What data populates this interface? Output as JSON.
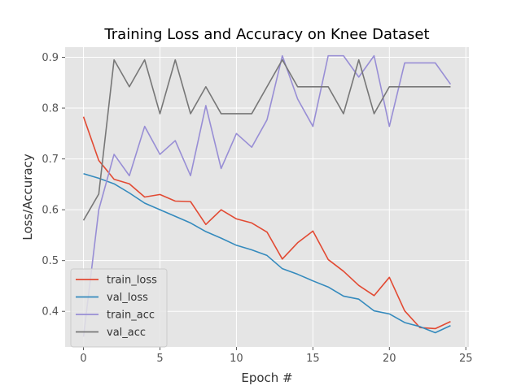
{
  "chart_data": {
    "type": "line",
    "title": "Training Loss and Accuracy on Knee Dataset",
    "xlabel": "Epoch #",
    "ylabel": "Loss/Accuracy",
    "xlim": [
      -1.2,
      25.2
    ],
    "ylim": [
      0.33,
      0.92
    ],
    "xticks": [
      0,
      5,
      10,
      15,
      20,
      25
    ],
    "yticks": [
      0.4,
      0.5,
      0.6,
      0.7,
      0.8,
      0.9
    ],
    "ytick_labels": [
      "0.4",
      "0.5",
      "0.6",
      "0.7",
      "0.8",
      "0.9"
    ],
    "grid": true,
    "background": "#e5e5e5",
    "legend": "bottom-left",
    "x": [
      0,
      1,
      2,
      3,
      4,
      5,
      6,
      7,
      8,
      9,
      10,
      11,
      12,
      13,
      14,
      15,
      16,
      17,
      18,
      19,
      20,
      21,
      22,
      23,
      24
    ],
    "series": [
      {
        "name": "train_loss",
        "color": "#e24a33",
        "values": [
          0.783,
          0.697,
          0.66,
          0.651,
          0.625,
          0.63,
          0.617,
          0.616,
          0.571,
          0.6,
          0.582,
          0.574,
          0.556,
          0.503,
          0.535,
          0.558,
          0.502,
          0.479,
          0.451,
          0.431,
          0.467,
          0.401,
          0.368,
          0.366,
          0.38
        ]
      },
      {
        "name": "val_loss",
        "color": "#348abd",
        "values": [
          0.671,
          0.662,
          0.651,
          0.633,
          0.613,
          0.6,
          0.587,
          0.574,
          0.557,
          0.544,
          0.53,
          0.521,
          0.51,
          0.484,
          0.473,
          0.46,
          0.448,
          0.43,
          0.424,
          0.401,
          0.395,
          0.378,
          0.37,
          0.358,
          0.372
        ]
      },
      {
        "name": "train_acc",
        "color": "#988ed5",
        "values": [
          0.35,
          0.6,
          0.709,
          0.667,
          0.764,
          0.709,
          0.736,
          0.667,
          0.805,
          0.681,
          0.75,
          0.723,
          0.777,
          0.903,
          0.818,
          0.764,
          0.903,
          0.903,
          0.861,
          0.903,
          0.764,
          0.889,
          0.889,
          0.889,
          0.847
        ]
      },
      {
        "name": "val_acc",
        "color": "#777777",
        "values": [
          0.579,
          0.631,
          0.895,
          0.842,
          0.895,
          0.789,
          0.895,
          0.789,
          0.842,
          0.789,
          0.789,
          0.789,
          0.842,
          0.895,
          0.842,
          0.842,
          0.842,
          0.789,
          0.895,
          0.789,
          0.842,
          0.842,
          0.842,
          0.842,
          0.842
        ]
      }
    ]
  }
}
